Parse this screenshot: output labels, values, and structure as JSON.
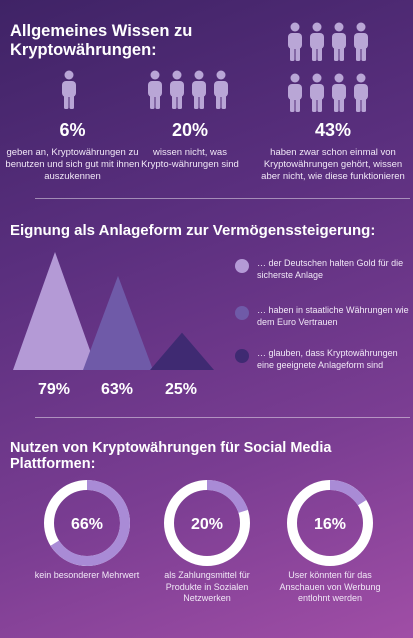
{
  "sections": {
    "knowledge": {
      "title": "Allgemeines Wissen zu Kryptowährungen:",
      "items": [
        {
          "pct": "6%",
          "desc": "geben an, Kryptowährungen zu benutzen und sich gut mit ihnen auszukennen",
          "figures": 1
        },
        {
          "pct": "20%",
          "desc": "wissen nicht, was Krypto-währungen sind",
          "figures": 4
        },
        {
          "pct": "43%",
          "desc": "haben zwar schon einmal von Kryptowährungen gehört, wissen aber nicht, wie diese funktionieren",
          "figures": 8
        }
      ]
    },
    "investment": {
      "title": "Eignung als Anlageform zur Vermögenssteigerung:",
      "legend": [
        {
          "text": "… der Deutschen halten Gold für die sicherste Anlage",
          "color": "#b49ad6"
        },
        {
          "text": "… haben in staatliche Währungen wie dem Euro Vertrauen",
          "color": "#6f5aa8"
        },
        {
          "text": "… glauben, dass Kryptowährungen eine geeignete Anlageform sind",
          "color": "#3f2a72"
        }
      ]
    },
    "social": {
      "title": "Nutzen von Kryptowährungen für Social Media Plattformen:",
      "items": [
        {
          "label": "66%",
          "desc": "kein besonderer Mehrwert"
        },
        {
          "label": "20%",
          "desc": "als Zahlungsmittel für Produkte in Sozialen Netzwerken"
        },
        {
          "label": "16%",
          "desc": "User könnten für das Anschauen von Werbung entlohnt werden"
        }
      ]
    }
  },
  "chart_data": [
    {
      "type": "bar",
      "categories": [
        "Gold",
        "Staatliche Währungen",
        "Kryptowährungen"
      ],
      "values": [
        79,
        63,
        25
      ],
      "value_labels": [
        "79%",
        "63%",
        "25%"
      ],
      "colors": [
        "#b49ad6",
        "#6f5aa8",
        "#3f2a72"
      ]
    },
    {
      "type": "pie",
      "categories": [
        "kein besonderer Mehrwert",
        "als Zahlungsmittel für Produkte in Sozialen Netzwerken",
        "User könnten für das Anschauen von Werbung entlohnt werden"
      ],
      "values": [
        66,
        20,
        16
      ]
    }
  ],
  "colors": {
    "figure": "#b9a6d6",
    "ring_track": "#ffffff",
    "ring_fill": "#a98bd6"
  }
}
